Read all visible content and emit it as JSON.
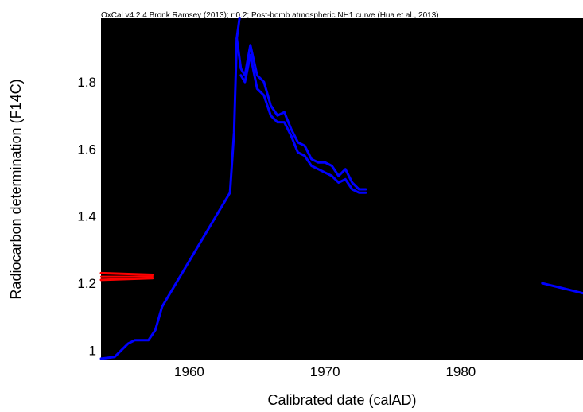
{
  "chart_data": {
    "type": "line",
    "title": "OxCal v4.2.4 Bronk Ramsey (2013); r:0.2; Post-bomb atmospheric NH1 curve (Hua et al., 2013)",
    "xlabel": "Calibrated date (calAD)",
    "ylabel": "Radiocarbon determination (F14C)",
    "xlim": [
      1953.5,
      1989
    ],
    "ylim": [
      0.97,
      1.99
    ],
    "x_ticks": [
      1960,
      1970,
      1980
    ],
    "y_ticks": [
      1.0,
      1.2,
      1.4,
      1.6,
      1.8
    ],
    "y_tick_labels": [
      "1",
      "1.2",
      "1.4",
      "1.6",
      "1.8"
    ],
    "grid": false,
    "background": "#000000",
    "colors": {
      "curve": "#0000ff",
      "measurement": "#ff0000"
    },
    "series": [
      {
        "role": "calibration-curve-upper",
        "color": "#0000ff",
        "points": [
          [
            1953.5,
            0.975
          ],
          [
            1954.5,
            0.98
          ],
          [
            1955.0,
            1.0
          ],
          [
            1955.5,
            1.02
          ],
          [
            1956.0,
            1.03
          ],
          [
            1957.0,
            1.03
          ],
          [
            1957.5,
            1.06
          ],
          [
            1958.0,
            1.13
          ],
          [
            1963.0,
            1.47
          ],
          [
            1963.3,
            1.65
          ],
          [
            1963.5,
            1.93
          ],
          [
            1963.7,
            1.99
          ]
        ]
      },
      {
        "role": "calibration-curve-center",
        "color": "#0000ff",
        "points": [
          [
            1963.5,
            1.93
          ],
          [
            1963.8,
            1.84
          ],
          [
            1964.1,
            1.82
          ],
          [
            1964.5,
            1.91
          ],
          [
            1965.0,
            1.82
          ],
          [
            1965.5,
            1.8
          ],
          [
            1966.0,
            1.73
          ],
          [
            1966.5,
            1.7
          ],
          [
            1967.0,
            1.71
          ],
          [
            1967.5,
            1.66
          ],
          [
            1968.0,
            1.62
          ],
          [
            1968.5,
            1.61
          ],
          [
            1969.0,
            1.57
          ],
          [
            1969.5,
            1.56
          ],
          [
            1970.0,
            1.56
          ],
          [
            1970.5,
            1.55
          ],
          [
            1971.0,
            1.52
          ],
          [
            1971.5,
            1.54
          ],
          [
            1972.0,
            1.5
          ],
          [
            1972.5,
            1.48
          ],
          [
            1973.0,
            1.48
          ]
        ]
      },
      {
        "role": "calibration-curve-lower",
        "color": "#0000ff",
        "points": [
          [
            1963.8,
            1.82
          ],
          [
            1964.1,
            1.8
          ],
          [
            1964.5,
            1.88
          ],
          [
            1965.0,
            1.78
          ],
          [
            1965.5,
            1.76
          ],
          [
            1966.0,
            1.7
          ],
          [
            1966.5,
            1.68
          ],
          [
            1967.0,
            1.68
          ],
          [
            1967.5,
            1.64
          ],
          [
            1968.0,
            1.59
          ],
          [
            1968.5,
            1.58
          ],
          [
            1969.0,
            1.55
          ],
          [
            1969.5,
            1.54
          ],
          [
            1970.0,
            1.53
          ],
          [
            1970.5,
            1.52
          ],
          [
            1971.0,
            1.5
          ],
          [
            1971.5,
            1.51
          ],
          [
            1972.0,
            1.48
          ],
          [
            1972.5,
            1.47
          ],
          [
            1973.0,
            1.47
          ]
        ]
      },
      {
        "role": "calibration-curve-late",
        "color": "#0000ff",
        "points": [
          [
            1986.0,
            1.2
          ],
          [
            1986.5,
            1.195
          ],
          [
            1987.0,
            1.19
          ],
          [
            1987.5,
            1.185
          ],
          [
            1988.0,
            1.18
          ],
          [
            1988.5,
            1.175
          ],
          [
            1989.0,
            1.17
          ]
        ]
      },
      {
        "role": "measurement-band",
        "color": "#ff0000",
        "points_upper": [
          [
            1953.5,
            1.23
          ],
          [
            1957.3,
            1.225
          ]
        ],
        "points_center": [
          [
            1953.5,
            1.22
          ],
          [
            1957.3,
            1.22
          ]
        ],
        "points_lower": [
          [
            1953.5,
            1.21
          ],
          [
            1957.3,
            1.215
          ]
        ]
      }
    ]
  }
}
